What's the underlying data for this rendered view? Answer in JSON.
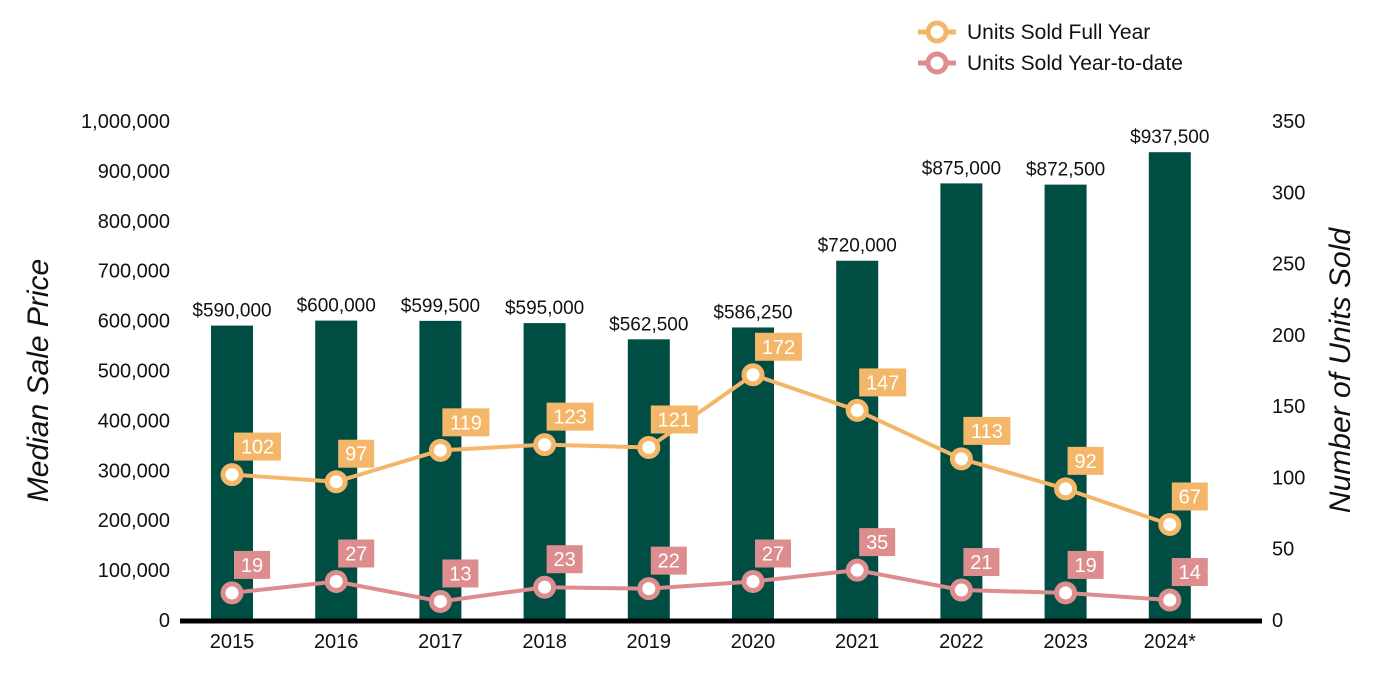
{
  "chart_data": {
    "type": "bar",
    "categories": [
      "2015",
      "2016",
      "2017",
      "2018",
      "2019",
      "2020",
      "2021",
      "2022",
      "2023",
      "2024*"
    ],
    "bar_series": {
      "values": [
        590000,
        600000,
        599500,
        595000,
        562500,
        586250,
        720000,
        875000,
        872500,
        937500
      ],
      "labels": [
        "$590,000",
        "$600,000",
        "$599,500",
        "$595,000",
        "$562,500",
        "$586,250",
        "$720,000",
        "$875,000",
        "$872,500",
        "$937,500"
      ],
      "color": "#004D44"
    },
    "series": [
      {
        "name": "Units Sold Full Year",
        "type": "line",
        "axis": "right",
        "values": [
          102,
          97,
          119,
          123,
          121,
          172,
          147,
          113,
          92,
          67
        ],
        "labels": [
          "102",
          "97",
          "119",
          "123",
          "121",
          "172",
          "147",
          "113",
          "92",
          "67"
        ],
        "color": "#F4B76A"
      },
      {
        "name": "Units Sold Year-to-date",
        "type": "line",
        "axis": "right",
        "values": [
          19,
          27,
          13,
          23,
          22,
          27,
          35,
          21,
          19,
          14
        ],
        "labels": [
          "19",
          "27",
          "13",
          "23",
          "22",
          "27",
          "35",
          "21",
          "19",
          "14"
        ],
        "color": "#DD8D8E"
      }
    ],
    "ylabel": "Median Sale Price",
    "y2label": "Number of Units Sold",
    "ylim": [
      0,
      1000000
    ],
    "y2lim": [
      0,
      350
    ],
    "yticks": [
      "0",
      "100,000",
      "200,000",
      "300,000",
      "400,000",
      "500,000",
      "600,000",
      "700,000",
      "800,000",
      "900,000",
      "1,000,000"
    ],
    "y2ticks": [
      "0",
      "50",
      "100",
      "150",
      "200",
      "250",
      "300",
      "350"
    ],
    "grid": false,
    "legend": "top-right"
  }
}
